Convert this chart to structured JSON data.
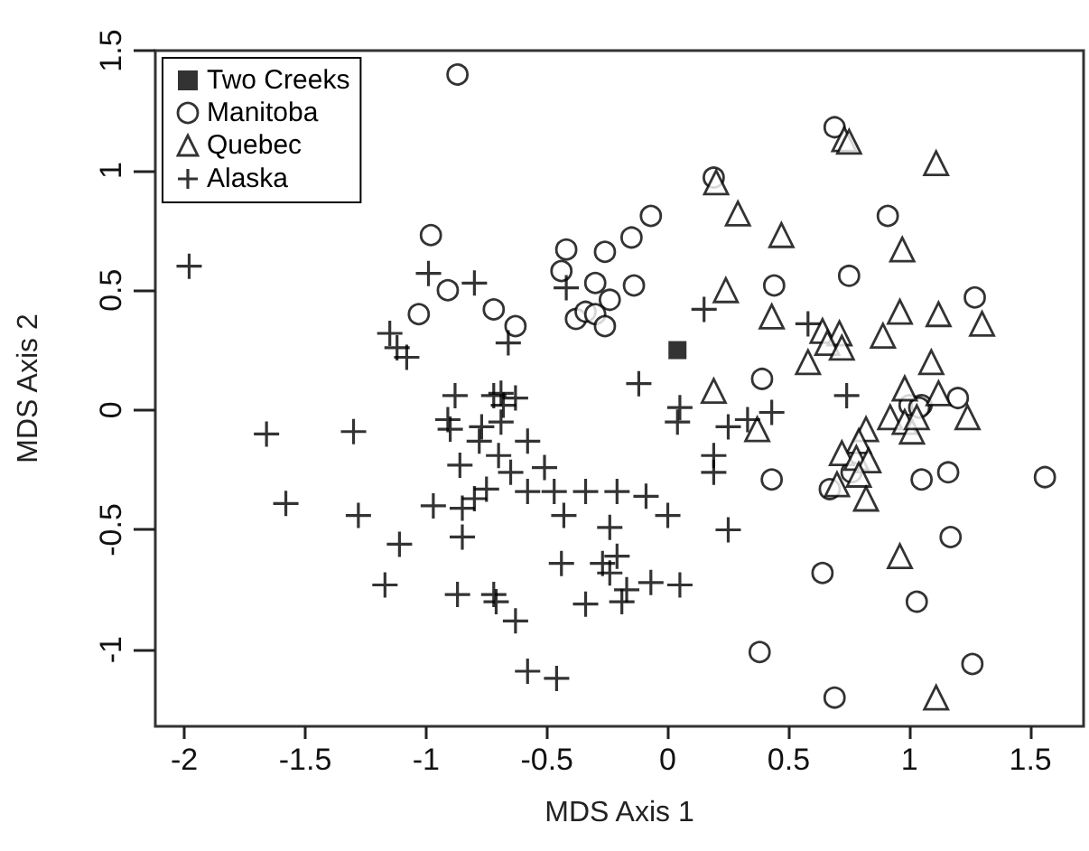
{
  "chart_data": {
    "type": "scatter",
    "xlabel": "MDS Axis 1",
    "ylabel": "MDS Axis 2",
    "xlim": [
      -2.12,
      1.72
    ],
    "ylim": [
      -1.32,
      1.5
    ],
    "xticks": [
      -2,
      -1.5,
      -1,
      -0.5,
      0,
      0.5,
      1,
      1.5
    ],
    "yticks": [
      -1,
      -0.5,
      0,
      0.5,
      1,
      1.5
    ],
    "grid": false,
    "legend": "top left",
    "series": [
      {
        "name": "Two Creeks",
        "color": "#000000",
        "marker": "square",
        "x": [
          0.04
        ],
        "values": [
          0.25
        ]
      },
      {
        "name": "Manitoba",
        "color": "#000000",
        "marker": "circle",
        "x": [
          -0.87,
          -0.98,
          -0.91,
          -1.03,
          -0.72,
          -0.63,
          -0.42,
          -0.44,
          -0.26,
          -0.15,
          -0.07,
          -0.3,
          -0.14,
          -0.24,
          -0.38,
          -0.34,
          -0.3,
          -0.26,
          0.19,
          0.69,
          0.91,
          0.75,
          0.44,
          1.27,
          0.39,
          1.2,
          1.0,
          1.05,
          1.04,
          0.76,
          0.67,
          1.05,
          1.16,
          1.56,
          0.43,
          1.17,
          0.64,
          1.03,
          0.38,
          1.26,
          0.69
        ],
        "values": [
          1.4,
          0.73,
          0.5,
          0.4,
          0.42,
          0.35,
          0.67,
          0.58,
          0.66,
          0.72,
          0.81,
          0.53,
          0.52,
          0.46,
          0.38,
          0.41,
          0.4,
          0.35,
          0.97,
          1.18,
          0.81,
          0.56,
          0.52,
          0.47,
          0.13,
          0.05,
          0.02,
          0.02,
          0.01,
          -0.26,
          -0.33,
          -0.29,
          -0.26,
          -0.28,
          -0.29,
          -0.53,
          -0.68,
          -0.8,
          -1.01,
          -1.06,
          -1.2
        ]
      },
      {
        "name": "Quebec",
        "color": "#000000",
        "marker": "triangle",
        "x": [
          0.73,
          0.75,
          1.11,
          0.2,
          0.29,
          0.47,
          0.97,
          0.24,
          0.43,
          1.3,
          0.96,
          1.12,
          0.89,
          0.64,
          0.71,
          0.66,
          0.72,
          0.58,
          1.09,
          0.19,
          0.98,
          1.12,
          0.37,
          1.24,
          0.82,
          0.79,
          0.72,
          0.78,
          0.83,
          0.7,
          0.79,
          0.82,
          0.92,
          0.98,
          1.01,
          1.03,
          0.96,
          1.11
        ],
        "values": [
          1.13,
          1.12,
          1.03,
          0.95,
          0.82,
          0.73,
          0.67,
          0.5,
          0.39,
          0.36,
          0.41,
          0.4,
          0.31,
          0.33,
          0.32,
          0.28,
          0.26,
          0.2,
          0.2,
          0.08,
          0.09,
          0.07,
          -0.08,
          -0.03,
          -0.08,
          -0.13,
          -0.18,
          -0.2,
          -0.21,
          -0.31,
          -0.27,
          -0.37,
          -0.03,
          -0.05,
          -0.09,
          -0.03,
          -0.61,
          -1.2
        ]
      },
      {
        "name": "Alaska",
        "color": "#000000",
        "marker": "cross",
        "x": [
          -1.98,
          -0.99,
          -0.8,
          -0.42,
          -1.15,
          -1.08,
          -1.12,
          -0.66,
          -0.12,
          0.15,
          0.58,
          0.74,
          0.05,
          0.04,
          -0.88,
          -0.72,
          -0.69,
          -0.63,
          0.25,
          0.33,
          0.43,
          0.19,
          0.19,
          0.25,
          -1.66,
          -1.3,
          -1.58,
          -1.28,
          -0.91,
          -0.9,
          -0.77,
          -0.69,
          -0.68,
          -0.78,
          -0.58,
          -0.86,
          -0.7,
          -0.65,
          -0.51,
          -0.75,
          -0.8,
          -0.58,
          -0.47,
          -0.43,
          -0.34,
          -0.21,
          -0.09,
          0.0,
          -0.97,
          -0.85,
          -0.85,
          -1.11,
          -0.24,
          -0.21,
          -0.44,
          -0.27,
          -0.24,
          -0.17,
          -0.07,
          0.05,
          -0.34,
          -0.19,
          -1.17,
          -0.87,
          -0.72,
          -0.71,
          -0.63,
          -0.58,
          -0.46
        ],
        "values": [
          0.6,
          0.57,
          0.53,
          0.51,
          0.32,
          0.22,
          0.26,
          0.28,
          0.11,
          0.42,
          0.36,
          0.06,
          0.01,
          -0.05,
          0.06,
          0.06,
          0.07,
          0.05,
          -0.07,
          -0.04,
          -0.01,
          -0.19,
          -0.26,
          -0.5,
          -0.1,
          -0.09,
          -0.39,
          -0.44,
          -0.04,
          -0.08,
          -0.07,
          -0.05,
          0.02,
          -0.13,
          -0.13,
          -0.23,
          -0.19,
          -0.26,
          -0.24,
          -0.33,
          -0.37,
          -0.34,
          -0.34,
          -0.44,
          -0.34,
          -0.34,
          -0.36,
          -0.44,
          -0.4,
          -0.41,
          -0.53,
          -0.56,
          -0.49,
          -0.61,
          -0.64,
          -0.64,
          -0.68,
          -0.75,
          -0.72,
          -0.73,
          -0.81,
          -0.8,
          -0.73,
          -0.77,
          -0.77,
          -0.8,
          -0.88,
          -1.09,
          -1.12
        ]
      }
    ]
  }
}
